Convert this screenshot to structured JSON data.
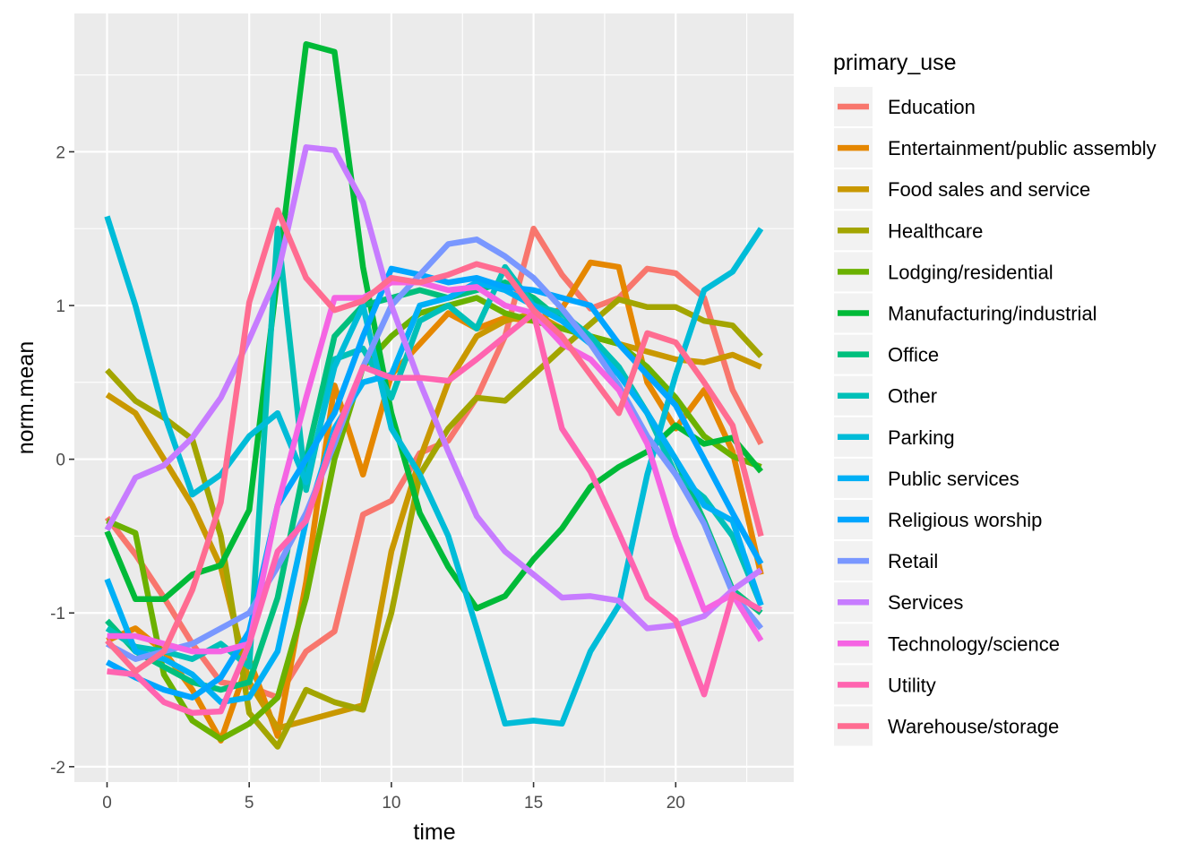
{
  "chart_data": {
    "type": "line",
    "xlabel": "time",
    "ylabel": "norm.mean",
    "xlim": [
      -1.15,
      24.15
    ],
    "ylim": [
      -2.1,
      2.9
    ],
    "x_ticks": [
      0,
      5,
      10,
      15,
      20
    ],
    "y_ticks": [
      -2,
      -1,
      0,
      1,
      2
    ],
    "x_tick_labels": [
      "0",
      "5",
      "10",
      "15",
      "20"
    ],
    "y_tick_labels": [
      "-2",
      "-1",
      "0",
      "1",
      "2"
    ],
    "grid": true,
    "legend": {
      "title": "primary_use",
      "position": "right"
    },
    "x": [
      0,
      1,
      2,
      3,
      4,
      5,
      6,
      7,
      8,
      9,
      10,
      11,
      12,
      13,
      14,
      15,
      16,
      17,
      18,
      19,
      20,
      21,
      22,
      23
    ],
    "series": [
      {
        "name": "Education",
        "color": "#F8766D",
        "values": [
          -0.38,
          -0.62,
          -0.9,
          -1.2,
          -1.45,
          -1.48,
          -1.55,
          -1.25,
          -1.12,
          -0.36,
          -0.27,
          0.04,
          0.12,
          0.4,
          0.8,
          1.5,
          1.2,
          0.98,
          1.05,
          1.24,
          1.21,
          1.05,
          0.45,
          0.1
        ]
      },
      {
        "name": "Entertainment/public assembly",
        "color": "#E58700",
        "values": [
          -1.18,
          -1.1,
          -1.25,
          -1.5,
          -1.83,
          -1.3,
          -1.8,
          -0.8,
          0.48,
          -0.1,
          0.55,
          0.75,
          0.95,
          0.85,
          0.92,
          0.9,
          0.98,
          1.28,
          1.25,
          0.5,
          0.2,
          0.45,
          0.05,
          -0.75
        ]
      },
      {
        "name": "Food sales and service",
        "color": "#C99800",
        "values": [
          0.42,
          0.3,
          0.0,
          -0.3,
          -0.7,
          -1.45,
          -1.75,
          -1.7,
          -1.65,
          -1.6,
          -0.6,
          0.0,
          0.5,
          0.8,
          0.9,
          0.95,
          0.85,
          0.8,
          0.75,
          0.7,
          0.65,
          0.63,
          0.68,
          0.6
        ]
      },
      {
        "name": "Healthcare",
        "color": "#A3A500",
        "values": [
          0.58,
          0.38,
          0.27,
          0.13,
          -0.5,
          -1.65,
          -1.87,
          -1.5,
          -1.58,
          -1.63,
          -1.0,
          -0.1,
          0.2,
          0.4,
          0.38,
          0.55,
          0.72,
          0.88,
          1.04,
          0.99,
          0.99,
          0.9,
          0.87,
          0.67
        ]
      },
      {
        "name": "Lodging/residential",
        "color": "#6BB100",
        "values": [
          -0.4,
          -0.48,
          -1.4,
          -1.7,
          -1.82,
          -1.72,
          -1.55,
          -0.9,
          0.0,
          0.6,
          0.8,
          0.95,
          1.0,
          1.05,
          0.95,
          0.9,
          0.85,
          0.8,
          0.75,
          0.6,
          0.4,
          0.15,
          0.02,
          -0.05
        ]
      },
      {
        "name": "Manufacturing/industrial",
        "color": "#00BA38",
        "values": [
          -0.47,
          -0.91,
          -0.91,
          -0.75,
          -0.69,
          -0.33,
          1.2,
          2.7,
          2.65,
          1.25,
          0.3,
          -0.35,
          -0.7,
          -0.97,
          -0.89,
          -0.65,
          -0.45,
          -0.18,
          -0.05,
          0.05,
          0.22,
          0.1,
          0.14,
          -0.08
        ]
      },
      {
        "name": "Office",
        "color": "#00BF7D",
        "values": [
          -1.05,
          -1.25,
          -1.35,
          -1.45,
          -1.5,
          -1.45,
          -0.9,
          0.0,
          0.8,
          1.0,
          1.05,
          1.1,
          1.05,
          1.1,
          1.15,
          1.05,
          0.9,
          0.8,
          0.6,
          0.3,
          0.0,
          -0.4,
          -0.85,
          -1.0
        ]
      },
      {
        "name": "Other",
        "color": "#00C0B8",
        "values": [
          -1.1,
          -1.22,
          -1.25,
          -1.3,
          -1.2,
          -1.35,
          1.5,
          -0.2,
          0.65,
          0.72,
          0.4,
          0.9,
          1.0,
          0.85,
          1.25,
          1.0,
          0.95,
          0.8,
          0.6,
          0.3,
          -0.1,
          -0.25,
          -0.5,
          -0.95
        ]
      },
      {
        "name": "Parking",
        "color": "#00BCD8",
        "values": [
          1.58,
          1.0,
          0.3,
          -0.23,
          -0.1,
          0.15,
          0.3,
          -0.15,
          0.6,
          1.0,
          0.2,
          -0.1,
          -0.5,
          -1.1,
          -1.72,
          -1.7,
          -1.72,
          -1.25,
          -0.95,
          -0.1,
          0.55,
          1.1,
          1.22,
          1.5
        ]
      },
      {
        "name": "Public services",
        "color": "#00B0F6",
        "values": [
          -0.78,
          -1.25,
          -1.3,
          -1.4,
          -1.58,
          -1.55,
          -1.25,
          -0.4,
          0.2,
          0.5,
          0.55,
          1.0,
          1.05,
          1.15,
          1.1,
          1.0,
          0.9,
          0.75,
          0.55,
          0.3,
          0.0,
          -0.3,
          -0.4,
          -0.95
        ]
      },
      {
        "name": "Religious worship",
        "color": "#00A5FF",
        "values": [
          -1.32,
          -1.42,
          -1.5,
          -1.55,
          -1.42,
          -1.12,
          -0.3,
          0.0,
          0.3,
          0.8,
          1.24,
          1.2,
          1.15,
          1.18,
          1.12,
          1.1,
          1.05,
          1.0,
          0.75,
          0.55,
          0.35,
          0.0,
          -0.35,
          -0.68
        ]
      },
      {
        "name": "Retail",
        "color": "#7997FF",
        "values": [
          -1.2,
          -1.3,
          -1.25,
          -1.2,
          -1.1,
          -1.0,
          -0.7,
          -0.35,
          0.1,
          0.6,
          1.0,
          1.2,
          1.4,
          1.43,
          1.32,
          1.18,
          0.98,
          0.75,
          0.48,
          0.15,
          -0.1,
          -0.42,
          -0.87,
          -1.1
        ]
      },
      {
        "name": "Services",
        "color": "#C77CFF",
        "values": [
          -0.46,
          -0.12,
          -0.04,
          0.14,
          0.4,
          0.78,
          1.2,
          2.03,
          2.01,
          1.67,
          1.0,
          0.5,
          0.05,
          -0.37,
          -0.6,
          -0.75,
          -0.9,
          -0.89,
          -0.92,
          -1.1,
          -1.08,
          -1.02,
          -0.85,
          -0.72
        ]
      },
      {
        "name": "Technology/science",
        "color": "#F564E3",
        "values": [
          -1.15,
          -1.15,
          -1.2,
          -1.25,
          -1.25,
          -1.2,
          -0.3,
          0.4,
          1.05,
          1.05,
          1.15,
          1.15,
          1.1,
          1.12,
          1.0,
          0.95,
          0.75,
          0.65,
          0.45,
          0.1,
          -0.5,
          -0.98,
          -0.88,
          -1.18
        ]
      },
      {
        "name": "Utility",
        "color": "#FF64B0",
        "values": [
          -1.38,
          -1.4,
          -1.58,
          -1.65,
          -1.64,
          -1.2,
          -0.6,
          -0.4,
          0.15,
          0.6,
          0.53,
          0.53,
          0.51,
          0.65,
          0.8,
          0.95,
          0.2,
          -0.08,
          -0.48,
          -0.9,
          -1.05,
          -1.53,
          -0.88,
          -0.98
        ]
      },
      {
        "name": "Warehouse/storage",
        "color": "#FF6C91",
        "values": [
          -1.18,
          -1.38,
          -1.25,
          -0.85,
          -0.28,
          1.02,
          1.62,
          1.18,
          0.97,
          1.03,
          1.18,
          1.15,
          1.2,
          1.27,
          1.22,
          0.97,
          0.8,
          0.55,
          0.3,
          0.82,
          0.76,
          0.5,
          0.22,
          -0.5
        ]
      }
    ]
  }
}
